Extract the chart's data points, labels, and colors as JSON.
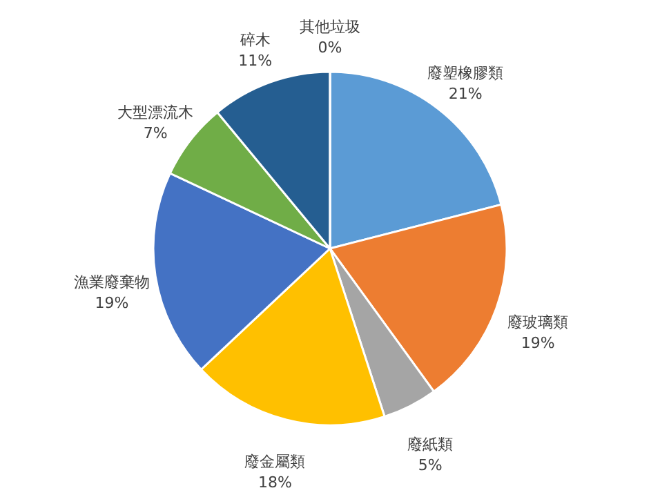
{
  "chart_data": {
    "type": "pie",
    "categories": [
      "廢塑橡膠類",
      "廢玻璃類",
      "廢紙類",
      "廢金屬類",
      "漁業廢棄物",
      "大型漂流木",
      "碎木",
      "其他垃圾"
    ],
    "values": [
      21,
      19,
      5,
      18,
      19,
      7,
      11,
      0
    ],
    "value_labels": [
      "21%",
      "19%",
      "5%",
      "18%",
      "19%",
      "7%",
      "11%",
      "0%"
    ],
    "colors": [
      "#5b9bd5",
      "#ed7d31",
      "#a5a5a5",
      "#ffc000",
      "#4472c4",
      "#70ad47",
      "#255e91",
      "#9e480e"
    ]
  }
}
